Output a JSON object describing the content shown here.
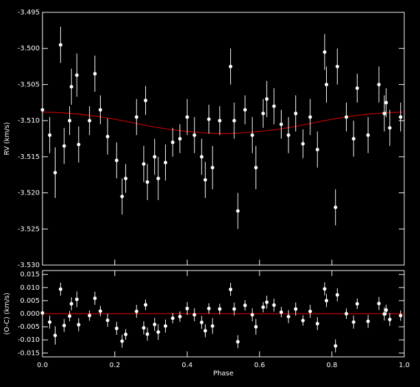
{
  "chart_data": [
    {
      "type": "scatter",
      "y_label": "RV (km/s)",
      "xlim": [
        0,
        1
      ],
      "ylim": [
        -3.53,
        -3.495
      ],
      "yticks": [
        -3.495,
        {
          "value": -3.5,
          "label": "-3.500"
        },
        -3.505,
        {
          "value": -3.51,
          "label": "-3.510"
        },
        -3.515,
        {
          "value": -3.52,
          "label": "-3.520"
        },
        -3.525,
        {
          "value": -3.53,
          "label": "-3.530"
        }
      ],
      "points": {
        "color": "#ffffff",
        "x": [
          0.0,
          0.02,
          0.035,
          0.05,
          0.06,
          0.075,
          0.08,
          0.095,
          0.1,
          0.13,
          0.145,
          0.16,
          0.18,
          0.205,
          0.22,
          0.23,
          0.26,
          0.28,
          0.285,
          0.29,
          0.31,
          0.32,
          0.34,
          0.36,
          0.38,
          0.4,
          0.42,
          0.44,
          0.45,
          0.46,
          0.47,
          0.49,
          0.52,
          0.53,
          0.54,
          0.56,
          0.58,
          0.59,
          0.61,
          0.62,
          0.64,
          0.66,
          0.68,
          0.7,
          0.72,
          0.74,
          0.76,
          0.78,
          0.785,
          0.81,
          0.815,
          0.84,
          0.86,
          0.87,
          0.9,
          0.93,
          0.945,
          0.95,
          0.96,
          0.99
        ],
        "values": [
          -3.5085,
          -3.512,
          -3.5172,
          -3.4995,
          -3.5135,
          -3.51,
          -3.5053,
          -3.5037,
          -3.5133,
          -3.51,
          -3.5035,
          -3.5085,
          -3.5122,
          -3.5155,
          -3.5205,
          -3.518,
          -3.5095,
          -3.516,
          -3.5072,
          -3.5185,
          -3.515,
          -3.518,
          -3.5158,
          -3.513,
          -3.5125,
          -3.5095,
          -3.512,
          -3.515,
          -3.5182,
          -3.5098,
          -3.5165,
          -3.51,
          -3.5025,
          -3.51,
          -3.5225,
          -3.5085,
          -3.512,
          -3.5165,
          -3.509,
          -3.507,
          -3.508,
          -3.5105,
          -3.512,
          -3.509,
          -3.5132,
          -3.5095,
          -3.514,
          -3.5005,
          -3.505,
          -3.522,
          -3.5025,
          -3.5095,
          -3.5125,
          -3.5055,
          -3.512,
          -3.505,
          -3.509,
          -3.5075,
          -3.511,
          -3.5095
        ],
        "errors": [
          0.002,
          0.0025,
          0.0035,
          0.0025,
          0.0025,
          0.002,
          0.0025,
          0.003,
          0.0025,
          0.002,
          0.0025,
          0.002,
          0.0025,
          0.0025,
          0.0025,
          0.002,
          0.0025,
          0.0025,
          0.002,
          0.0025,
          0.0025,
          0.003,
          0.0025,
          0.002,
          0.002,
          0.0025,
          0.0025,
          0.0025,
          0.0025,
          0.002,
          0.003,
          0.002,
          0.0025,
          0.0025,
          0.0025,
          0.002,
          0.0025,
          0.003,
          0.002,
          0.0025,
          0.0025,
          0.002,
          0.0025,
          0.0025,
          0.002,
          0.0025,
          0.0025,
          0.0025,
          0.0025,
          0.0025,
          0.0025,
          0.002,
          0.0025,
          0.002,
          0.0025,
          0.0025,
          0.0025,
          0.002,
          0.0025,
          0.002
        ]
      },
      "model": {
        "color": "#cc0000",
        "x": [
          0,
          0.05,
          0.1,
          0.15,
          0.2,
          0.25,
          0.3,
          0.35,
          0.4,
          0.45,
          0.5,
          0.55,
          0.6,
          0.65,
          0.7,
          0.75,
          0.8,
          0.85,
          0.9,
          0.95,
          1
        ],
        "values": [
          -3.5088,
          -3.5089,
          -3.5091,
          -3.5094,
          -3.5098,
          -3.5103,
          -3.5108,
          -3.5112,
          -3.5115,
          -3.5117,
          -3.5118,
          -3.5117,
          -3.5115,
          -3.5112,
          -3.5108,
          -3.5103,
          -3.5098,
          -3.5094,
          -3.5091,
          -3.5089,
          -3.5088
        ]
      }
    },
    {
      "type": "scatter",
      "y_label": "(O-C) (km/s)",
      "x_label": "Phase",
      "xlim": [
        0,
        1
      ],
      "ylim": [
        -0.0165,
        0.0165
      ],
      "xticks": [
        {
          "value": 0,
          "label": "0.0"
        },
        0.2,
        0.4,
        0.6,
        0.8,
        {
          "value": 1,
          "label": "1.0"
        }
      ],
      "yticks": [
        0.015,
        {
          "value": 0.01,
          "label": "0.010"
        },
        0.005,
        {
          "value": 0,
          "label": "0.000"
        },
        -0.005,
        {
          "value": -0.01,
          "label": "-0.010"
        },
        -0.015
      ],
      "points": {
        "color": "#ffffff",
        "x": [
          0.0,
          0.02,
          0.035,
          0.05,
          0.06,
          0.075,
          0.08,
          0.095,
          0.1,
          0.13,
          0.145,
          0.16,
          0.18,
          0.205,
          0.22,
          0.23,
          0.26,
          0.28,
          0.285,
          0.29,
          0.31,
          0.32,
          0.34,
          0.36,
          0.38,
          0.4,
          0.42,
          0.44,
          0.45,
          0.46,
          0.47,
          0.49,
          0.52,
          0.53,
          0.54,
          0.56,
          0.58,
          0.59,
          0.61,
          0.62,
          0.64,
          0.66,
          0.68,
          0.7,
          0.72,
          0.74,
          0.76,
          0.78,
          0.785,
          0.81,
          0.815,
          0.84,
          0.86,
          0.87,
          0.9,
          0.93,
          0.945,
          0.95,
          0.96,
          0.99
        ],
        "values": [
          0.0003,
          -0.0032,
          -0.0083,
          0.0094,
          -0.0045,
          -0.0009,
          0.0038,
          0.0055,
          -0.0042,
          -0.0007,
          0.0059,
          0.001,
          -0.0025,
          -0.0056,
          -0.0105,
          -0.0079,
          0.0009,
          -0.0054,
          0.0034,
          -0.0078,
          -0.0041,
          -0.007,
          -0.0047,
          -0.0017,
          -0.0011,
          0.002,
          -0.0004,
          -0.0033,
          -0.0065,
          0.002,
          -0.0047,
          0.0018,
          0.0093,
          0.0018,
          -0.0107,
          0.0032,
          -0.0004,
          -0.005,
          0.0025,
          0.0044,
          0.0033,
          0.0006,
          -0.0011,
          0.0018,
          -0.0026,
          0.0009,
          -0.0038,
          0.0095,
          0.005,
          -0.0123,
          0.0072,
          0.0,
          -0.0032,
          0.0038,
          -0.0029,
          0.0039,
          -0.0001,
          0.0014,
          -0.0022,
          -0.0007
        ],
        "errors": [
          0.002,
          0.0025,
          0.0035,
          0.0025,
          0.0025,
          0.002,
          0.0025,
          0.003,
          0.0025,
          0.002,
          0.0025,
          0.002,
          0.0025,
          0.0025,
          0.0025,
          0.002,
          0.0025,
          0.0025,
          0.002,
          0.0025,
          0.0025,
          0.003,
          0.0025,
          0.002,
          0.002,
          0.0025,
          0.0025,
          0.0025,
          0.0025,
          0.002,
          0.003,
          0.002,
          0.0025,
          0.0025,
          0.0025,
          0.002,
          0.0025,
          0.003,
          0.002,
          0.0025,
          0.0025,
          0.002,
          0.0025,
          0.0025,
          0.002,
          0.0025,
          0.0025,
          0.0025,
          0.0025,
          0.0025,
          0.0025,
          0.002,
          0.0025,
          0.002,
          0.0025,
          0.0025,
          0.0025,
          0.002,
          0.0025,
          0.002
        ]
      },
      "model": {
        "color": "#cc0000",
        "x": [
          0,
          1
        ],
        "values": [
          0,
          0
        ]
      }
    }
  ]
}
